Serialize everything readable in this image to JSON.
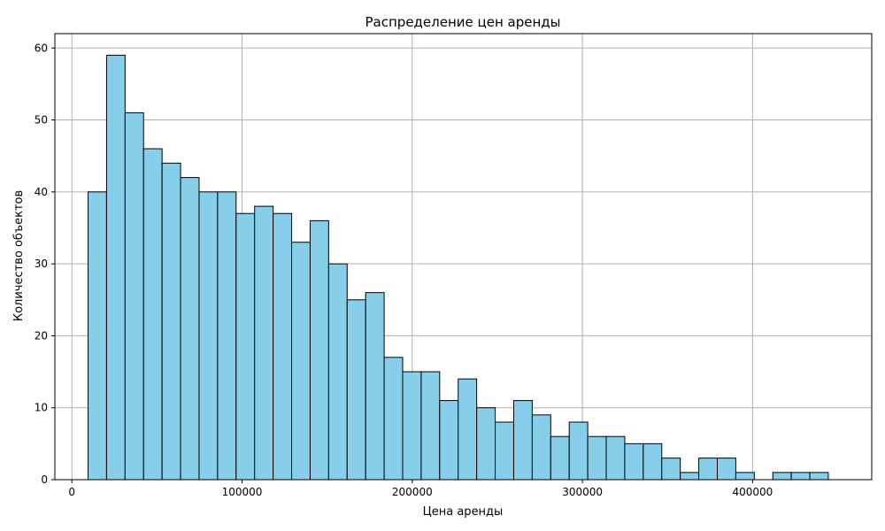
{
  "chart_data": {
    "type": "bar",
    "title": "Распределение цен аренды",
    "xlabel": "Цена аренды",
    "ylabel": "Количество объектов",
    "xlim": [
      -10000,
      470000
    ],
    "ylim": [
      0,
      62
    ],
    "xticks": [
      0,
      100000,
      200000,
      300000,
      400000
    ],
    "yticks": [
      0,
      10,
      20,
      30,
      40,
      50,
      60
    ],
    "grid": true,
    "bar_color": "#87ceeb",
    "edge_color": "#000000",
    "bin_width": 10875,
    "bin_start": 9500,
    "counts": [
      40,
      59,
      51,
      46,
      44,
      42,
      40,
      40,
      37,
      38,
      37,
      33,
      36,
      30,
      25,
      26,
      17,
      15,
      15,
      11,
      14,
      10,
      8,
      11,
      9,
      6,
      8,
      6,
      6,
      5,
      5,
      3,
      1,
      3,
      3,
      1,
      0,
      1,
      1,
      1
    ]
  }
}
